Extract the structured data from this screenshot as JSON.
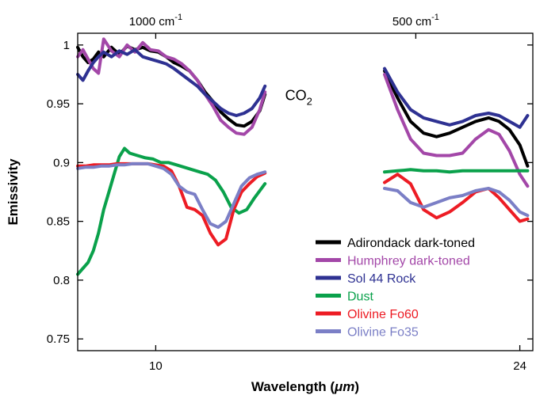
{
  "chart_data": {
    "type": "line",
    "xlabel_text": "Wavelength (",
    "xlabel_unit": "μm",
    "xlabel_close": ")",
    "ylabel": "Emissivity",
    "ylim": [
      0.74,
      1.01
    ],
    "xlim": [
      7.0,
      24.5
    ],
    "grid": false,
    "legend_position": "bottom-right",
    "y_ticks": [
      {
        "value": 0.75,
        "label": "0.75"
      },
      {
        "value": 0.8,
        "label": "0.8"
      },
      {
        "value": 0.85,
        "label": "0.85"
      },
      {
        "value": 0.9,
        "label": "0.9"
      },
      {
        "value": 0.95,
        "label": "0.95"
      },
      {
        "value": 1.0,
        "label": "1"
      }
    ],
    "x_ticks": [
      {
        "value": 10,
        "label": "10"
      },
      {
        "value": 24,
        "label": "24"
      }
    ],
    "top_ticks": [
      {
        "value": 10,
        "label": "1000 cm",
        "sup": "-1"
      },
      {
        "value": 20,
        "label": "500 cm",
        "sup": "-1"
      }
    ],
    "annotation": {
      "text": "CO",
      "sub": "2",
      "x": 15.5,
      "y": 0.953
    },
    "gap": [
      14.3,
      18.7
    ],
    "series": [
      {
        "name": "Adirondack dark-toned",
        "color": "#000000",
        "x": [
          7.0,
          7.2,
          7.4,
          7.6,
          7.8,
          8.0,
          8.3,
          8.6,
          8.9,
          9.2,
          9.5,
          9.8,
          10.1,
          10.4,
          10.7,
          11.0,
          11.3,
          11.6,
          11.9,
          12.2,
          12.5,
          12.8,
          13.1,
          13.4,
          13.7,
          14.0,
          14.2,
          18.8,
          19.3,
          19.8,
          20.3,
          20.8,
          21.3,
          21.8,
          22.3,
          22.8,
          23.2,
          23.6,
          24.0,
          24.3
        ],
        "y": [
          0.998,
          0.99,
          0.985,
          0.988,
          0.994,
          0.99,
          0.998,
          0.992,
          0.999,
          0.996,
          0.998,
          0.995,
          0.994,
          0.99,
          0.985,
          0.982,
          0.978,
          0.97,
          0.96,
          0.952,
          0.943,
          0.937,
          0.932,
          0.931,
          0.935,
          0.944,
          0.958,
          0.978,
          0.955,
          0.935,
          0.925,
          0.922,
          0.925,
          0.93,
          0.935,
          0.938,
          0.935,
          0.928,
          0.915,
          0.897
        ]
      },
      {
        "name": "Humphrey dark-toned",
        "color": "#a347a8",
        "x": [
          7.0,
          7.2,
          7.4,
          7.6,
          7.8,
          8.0,
          8.3,
          8.6,
          8.9,
          9.2,
          9.5,
          9.8,
          10.1,
          10.4,
          10.7,
          11.0,
          11.3,
          11.6,
          11.9,
          12.2,
          12.5,
          12.8,
          13.1,
          13.4,
          13.7,
          14.0,
          14.2,
          18.8,
          19.3,
          19.8,
          20.3,
          20.8,
          21.3,
          21.8,
          22.3,
          22.8,
          23.2,
          23.6,
          24.0,
          24.3
        ],
        "y": [
          0.99,
          0.996,
          0.988,
          0.98,
          0.976,
          1.005,
          0.995,
          0.99,
          1.0,
          0.994,
          1.002,
          0.996,
          0.995,
          0.99,
          0.988,
          0.984,
          0.978,
          0.97,
          0.958,
          0.948,
          0.936,
          0.93,
          0.925,
          0.924,
          0.93,
          0.945,
          0.96,
          0.975,
          0.945,
          0.92,
          0.908,
          0.906,
          0.906,
          0.908,
          0.92,
          0.928,
          0.924,
          0.91,
          0.89,
          0.88
        ]
      },
      {
        "name": "Sol 44 Rock",
        "color": "#2e3192",
        "x": [
          7.0,
          7.2,
          7.4,
          7.6,
          7.8,
          8.0,
          8.3,
          8.6,
          8.9,
          9.2,
          9.5,
          9.8,
          10.1,
          10.4,
          10.7,
          11.0,
          11.3,
          11.6,
          11.9,
          12.2,
          12.5,
          12.8,
          13.1,
          13.4,
          13.7,
          14.0,
          14.2,
          18.8,
          19.3,
          19.8,
          20.3,
          20.8,
          21.3,
          21.8,
          22.3,
          22.8,
          23.2,
          23.6,
          24.0,
          24.3
        ],
        "y": [
          0.975,
          0.97,
          0.978,
          0.985,
          0.99,
          0.994,
          0.99,
          0.995,
          0.992,
          0.996,
          0.99,
          0.988,
          0.986,
          0.984,
          0.98,
          0.975,
          0.97,
          0.965,
          0.958,
          0.952,
          0.946,
          0.942,
          0.94,
          0.942,
          0.946,
          0.955,
          0.965,
          0.98,
          0.96,
          0.945,
          0.938,
          0.935,
          0.932,
          0.935,
          0.94,
          0.942,
          0.94,
          0.935,
          0.93,
          0.94
        ]
      },
      {
        "name": "Dust",
        "color": "#0aa14b",
        "x": [
          7.0,
          7.2,
          7.4,
          7.6,
          7.8,
          8.0,
          8.2,
          8.4,
          8.6,
          8.8,
          9.0,
          9.3,
          9.6,
          9.9,
          10.2,
          10.5,
          10.8,
          11.1,
          11.4,
          11.7,
          12.0,
          12.3,
          12.6,
          12.9,
          13.2,
          13.5,
          13.8,
          14.2,
          18.8,
          19.3,
          19.8,
          20.3,
          20.8,
          21.3,
          21.8,
          22.3,
          22.8,
          23.2,
          23.6,
          24.0,
          24.3
        ],
        "y": [
          0.805,
          0.81,
          0.815,
          0.825,
          0.84,
          0.86,
          0.875,
          0.89,
          0.905,
          0.912,
          0.908,
          0.906,
          0.904,
          0.903,
          0.9,
          0.9,
          0.898,
          0.896,
          0.894,
          0.892,
          0.89,
          0.885,
          0.875,
          0.862,
          0.857,
          0.86,
          0.87,
          0.882,
          0.892,
          0.893,
          0.894,
          0.893,
          0.893,
          0.892,
          0.893,
          0.893,
          0.893,
          0.893,
          0.893,
          0.893,
          0.893
        ]
      },
      {
        "name": "Olivine Fo60",
        "color": "#ed1c24",
        "x": [
          7.0,
          7.3,
          7.6,
          7.9,
          8.2,
          8.5,
          8.8,
          9.1,
          9.4,
          9.7,
          10.0,
          10.3,
          10.6,
          10.9,
          11.2,
          11.5,
          11.8,
          12.1,
          12.4,
          12.7,
          13.0,
          13.3,
          13.6,
          13.9,
          14.2,
          18.8,
          19.3,
          19.8,
          20.3,
          20.8,
          21.3,
          21.8,
          22.3,
          22.8,
          23.2,
          23.6,
          24.0,
          24.3
        ],
        "y": [
          0.897,
          0.897,
          0.898,
          0.898,
          0.898,
          0.899,
          0.899,
          0.899,
          0.899,
          0.899,
          0.898,
          0.897,
          0.893,
          0.88,
          0.862,
          0.86,
          0.855,
          0.84,
          0.83,
          0.835,
          0.86,
          0.875,
          0.882,
          0.888,
          0.891,
          0.883,
          0.89,
          0.882,
          0.86,
          0.853,
          0.858,
          0.866,
          0.875,
          0.878,
          0.87,
          0.86,
          0.85,
          0.852
        ]
      },
      {
        "name": "Olivine Fo35",
        "color": "#7b7fc6",
        "x": [
          7.0,
          7.3,
          7.6,
          7.9,
          8.2,
          8.5,
          8.8,
          9.1,
          9.4,
          9.7,
          10.0,
          10.3,
          10.6,
          10.9,
          11.2,
          11.5,
          11.8,
          12.1,
          12.4,
          12.7,
          13.0,
          13.3,
          13.6,
          13.9,
          14.2,
          18.8,
          19.3,
          19.8,
          20.3,
          20.8,
          21.3,
          21.8,
          22.3,
          22.8,
          23.2,
          23.6,
          24.0,
          24.3
        ],
        "y": [
          0.895,
          0.896,
          0.896,
          0.897,
          0.897,
          0.898,
          0.898,
          0.899,
          0.899,
          0.899,
          0.897,
          0.895,
          0.89,
          0.88,
          0.875,
          0.873,
          0.86,
          0.848,
          0.845,
          0.85,
          0.865,
          0.88,
          0.887,
          0.89,
          0.892,
          0.878,
          0.876,
          0.866,
          0.862,
          0.866,
          0.87,
          0.872,
          0.876,
          0.878,
          0.875,
          0.868,
          0.858,
          0.855
        ]
      }
    ]
  }
}
